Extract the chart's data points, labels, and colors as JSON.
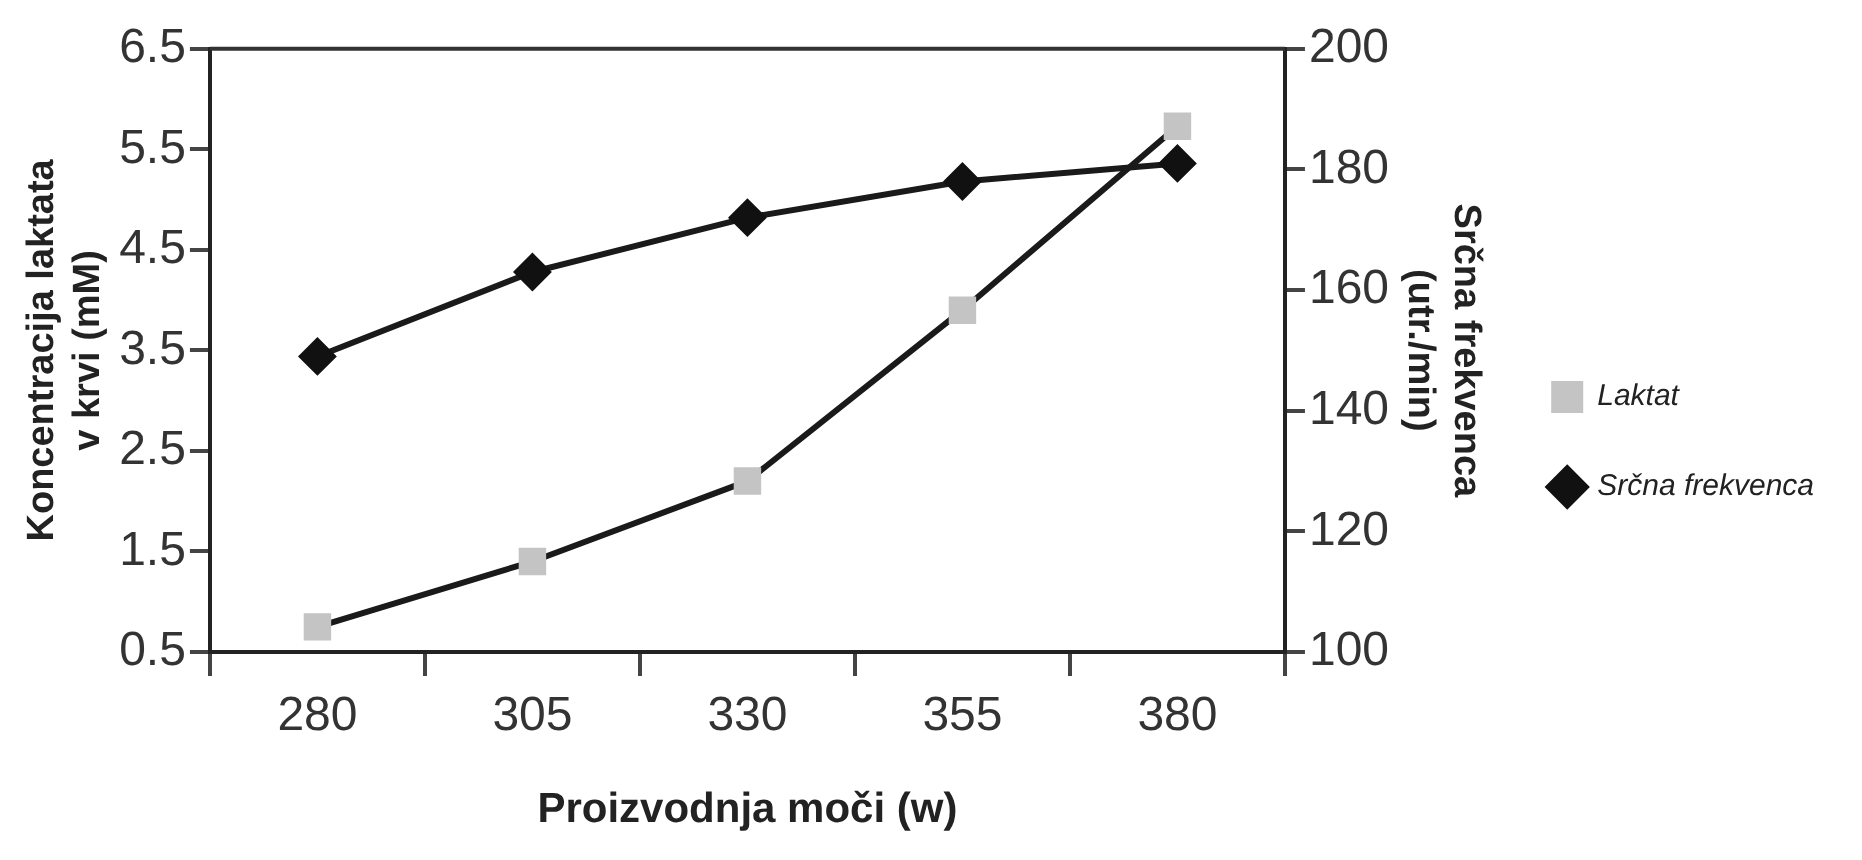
{
  "chart_data": {
    "type": "line",
    "xlabel": "Proizvodnja moči (w)",
    "ylabel": "Koncentracija laktata\nv krvi (mM)",
    "y2label": "Srčna frekvenca\n(utr./min)",
    "categories": [
      "280",
      "305",
      "330",
      "355",
      "380"
    ],
    "series": [
      {
        "name": "Laktat",
        "color": "#c4c4c4",
        "marker": "square",
        "values": [
          0.75,
          1.4,
          2.2,
          3.9,
          5.73
        ]
      },
      {
        "name": "Srčna frekvenca",
        "color": "#111111",
        "marker": "diamond",
        "axis": "y2",
        "values": [
          149,
          163,
          172,
          178,
          181
        ]
      }
    ],
    "ylim": [
      0.5,
      6.5
    ],
    "yticks": [
      0.5,
      1.5,
      2.5,
      3.5,
      4.5,
      5.5,
      6.5
    ],
    "y2lim": [
      100,
      200
    ],
    "y2ticks": [
      100,
      120,
      140,
      160,
      180,
      200
    ],
    "grid": false,
    "legend": "right",
    "line_style": "solid"
  }
}
